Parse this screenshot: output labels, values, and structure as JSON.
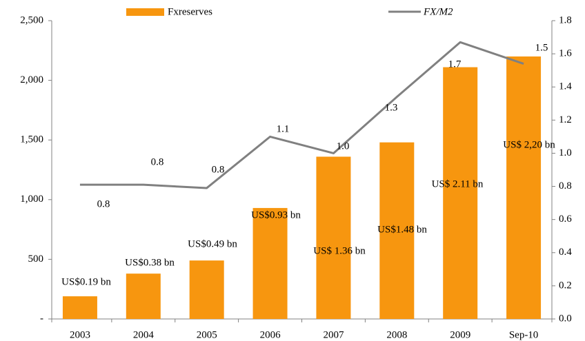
{
  "chart_data": {
    "type": "bar-line",
    "categories": [
      "2003",
      "2004",
      "2005",
      "2006",
      "2007",
      "2008",
      "2009",
      "Sep-10"
    ],
    "series": [
      {
        "name": "Fxreserves",
        "type": "bar",
        "color": "#f7960f",
        "values": [
          190,
          380,
          490,
          930,
          1360,
          1480,
          2110,
          2200
        ],
        "value_labels": [
          "US$0.19 bn",
          "US$0.38 bn",
          "US$0.49 bn",
          "US$0.93 bn",
          "US$ 1.36 bn",
          "US$1.48 bn",
          "US$ 2.11 bn",
          "US$ 2,20 bn"
        ]
      },
      {
        "name": "FX/M2",
        "type": "line",
        "axis": "y2",
        "color": "#808080",
        "values": [
          0.81,
          0.81,
          0.79,
          1.1,
          1.0,
          1.34,
          1.67,
          1.54
        ],
        "value_labels": [
          "0.8",
          "0.8",
          "0.8",
          "1.1",
          "1.0",
          "1.3",
          "1.7",
          "1.5"
        ]
      }
    ],
    "ylim": [
      0,
      2500
    ],
    "yticks": [
      {
        "value": 0,
        "label": "-"
      },
      {
        "value": 500,
        "label": "500"
      },
      {
        "value": 1000,
        "label": "1,000"
      },
      {
        "value": 1500,
        "label": "1,500"
      },
      {
        "value": 2000,
        "label": "2,000"
      },
      {
        "value": 2500,
        "label": "2,500"
      }
    ],
    "y2lim": [
      0,
      1.8
    ],
    "y2ticks": [
      {
        "value": 0,
        "label": "0.0"
      },
      0.2,
      0.4,
      0.6,
      0.8,
      {
        "value": 1,
        "label": "1.0"
      },
      1.2,
      1.4,
      1.6,
      1.8
    ],
    "grid": false,
    "legend": "top"
  }
}
